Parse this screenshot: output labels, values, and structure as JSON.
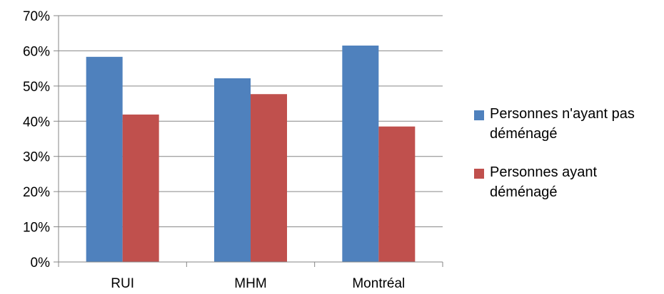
{
  "chart_data": {
    "type": "bar",
    "categories": [
      "RUI",
      "MHM",
      "Montréal"
    ],
    "series": [
      {
        "name": "Personnes n'ayant pas déménagé",
        "color": "#4f81bd",
        "values": [
          58.3,
          52.2,
          61.5
        ]
      },
      {
        "name": "Personnes ayant déménagé",
        "color": "#c0504d",
        "values": [
          41.9,
          47.7,
          38.5
        ]
      }
    ],
    "yticks": [
      "0%",
      "10%",
      "20%",
      "30%",
      "40%",
      "50%",
      "60%",
      "70%"
    ],
    "ylim": [
      0,
      70
    ],
    "grid": true,
    "legend_position": "right"
  }
}
